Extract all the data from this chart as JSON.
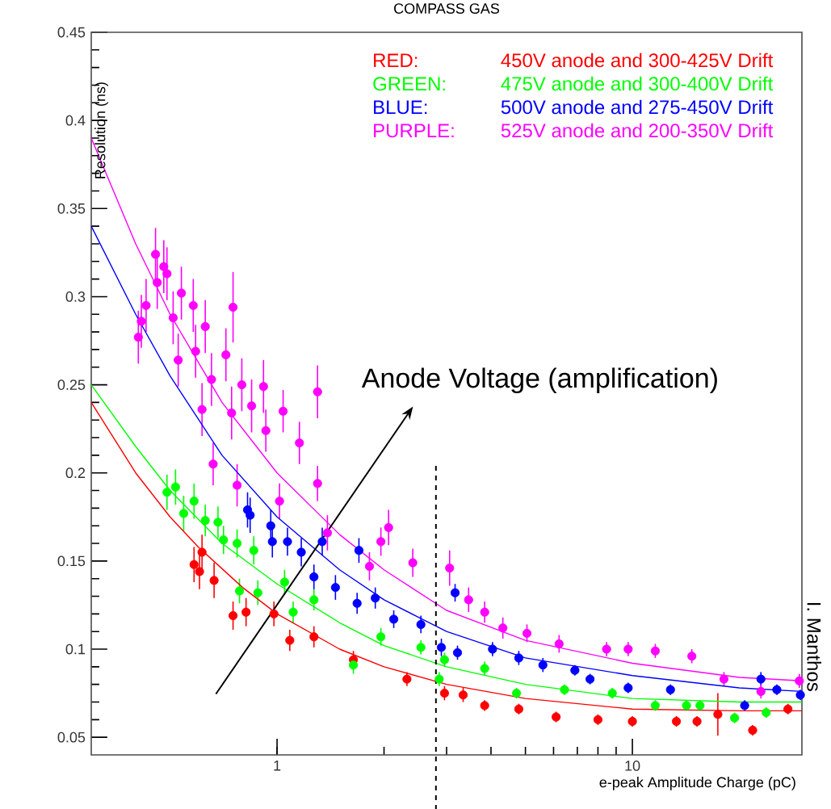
{
  "chart_data": {
    "type": "scatter",
    "title": "COMPASS GAS",
    "xlabel": "e-peak Amplitude Charge (pC)",
    "ylabel": "Resolution (ns)",
    "log": "x",
    "xlim": [
      0.3,
      30
    ],
    "ylim": [
      0.04,
      0.45
    ],
    "xticks": [
      1,
      10
    ],
    "yticks": [
      0.05,
      0.1,
      0.15,
      0.2,
      0.25,
      0.3,
      0.35,
      0.4,
      0.45
    ],
    "legend": "top right",
    "grid": false,
    "ref_lines": [
      {
        "axis": "x",
        "value": 2.8,
        "color": "#000000",
        "line_style": "dashed"
      }
    ],
    "annotations": [
      "RED:",
      "GREEN:",
      "BLUE:",
      "PURPLE:",
      "Anode Voltage (amplification)",
      "I. Manthos"
    ],
    "series": [
      {
        "name": "450V anode and 300-425V Drift",
        "marker": "circle",
        "color": "#ff0000",
        "x": [
          0.584,
          0.615,
          0.605,
          0.665,
          0.752,
          0.818,
          0.98,
          1.086,
          1.27,
          1.64,
          2.32,
          2.9,
          2.96,
          3.34,
          3.84,
          4.79,
          6.1,
          8.0,
          10.0,
          13.3,
          15.2,
          17.4,
          21.8,
          27.4
        ],
        "values": [
          0.148,
          0.155,
          0.144,
          0.139,
          0.119,
          0.121,
          0.12,
          0.105,
          0.107,
          0.094,
          0.083,
          null,
          0.075,
          0.074,
          0.068,
          0.066,
          0.0615,
          0.06,
          0.059,
          0.059,
          0.059,
          0.063,
          0.054,
          0.066
        ],
        "errors": [
          0.01,
          0.01,
          0.01,
          0.01,
          0.008,
          0.008,
          0.007,
          0.006,
          0.006,
          0.005,
          0.004,
          null,
          0.004,
          0.004,
          0.003,
          0.003,
          0.003,
          0.003,
          0.003,
          0.003,
          0.003,
          0.012,
          0.003,
          0.003
        ]
      },
      {
        "name": "475V anode and 300-400V Drift",
        "marker": "circle",
        "color": "#00ff00",
        "x": [
          0.49,
          0.518,
          0.584,
          0.546,
          0.628,
          0.682,
          0.707,
          0.772,
          0.86,
          0.784,
          0.883,
          1.05,
          1.11,
          1.27,
          1.64,
          1.96,
          2.54,
          2.86,
          2.96,
          3.84,
          4.72,
          6.44,
          8.78,
          11.6,
          14.2,
          15.5,
          19.4,
          23.8
        ],
        "values": [
          0.189,
          0.192,
          0.184,
          0.177,
          0.173,
          0.172,
          0.162,
          0.16,
          0.156,
          0.133,
          0.132,
          0.138,
          0.121,
          0.128,
          0.091,
          0.107,
          0.101,
          0.083,
          0.094,
          0.089,
          0.075,
          0.077,
          0.075,
          0.068,
          0.068,
          0.068,
          0.061,
          0.064
        ],
        "errors": [
          0.01,
          0.01,
          0.01,
          0.01,
          0.009,
          0.009,
          0.008,
          0.008,
          0.008,
          0.007,
          0.007,
          0.007,
          0.006,
          0.006,
          0.005,
          0.005,
          0.004,
          0.004,
          0.004,
          0.004,
          0.003,
          0.003,
          0.003,
          0.003,
          0.003,
          0.003,
          0.003,
          0.003
        ]
      },
      {
        "name": "500V anode and 275-450V Drift",
        "marker": "circle",
        "color": "#0000ff",
        "x": [
          0.826,
          0.84,
          0.96,
          0.97,
          1.07,
          1.17,
          1.34,
          1.27,
          1.46,
          1.68,
          1.7,
          1.89,
          2.13,
          2.54,
          2.9,
          3.17,
          3.22,
          4.04,
          4.79,
          5.6,
          6.89,
          7.6,
          9.73,
          12.8,
          18.4,
          20.7,
          23.0,
          25.5,
          29.7
        ],
        "values": [
          0.179,
          0.176,
          0.17,
          0.161,
          0.161,
          0.155,
          0.161,
          0.141,
          0.135,
          0.126,
          0.156,
          0.129,
          0.117,
          0.114,
          0.101,
          0.132,
          0.098,
          0.1,
          0.095,
          0.091,
          0.088,
          0.083,
          0.078,
          0.077,
          null,
          0.068,
          0.083,
          0.077,
          0.074
        ],
        "errors": [
          0.01,
          0.01,
          0.009,
          0.009,
          0.008,
          0.008,
          0.008,
          0.007,
          0.007,
          0.006,
          0.007,
          0.006,
          0.005,
          0.005,
          0.005,
          0.005,
          0.004,
          0.004,
          0.004,
          0.004,
          0.003,
          0.003,
          0.003,
          0.003,
          null,
          0.003,
          0.004,
          0.003,
          0.003
        ]
      },
      {
        "name": "525V anode and 200-350V Drift",
        "marker": "circle",
        "color": "#ff00ff",
        "x": [
          0.455,
          0.48,
          0.49,
          0.46,
          0.428,
          0.407,
          0.415,
          0.51,
          0.538,
          0.581,
          0.752,
          0.628,
          0.59,
          0.527,
          0.718,
          0.654,
          0.796,
          0.916,
          0.615,
          0.745,
          0.848,
          1.04,
          1.3,
          0.93,
          1.156,
          0.661,
          0.772,
          1.3,
          1.016,
          1.386,
          2.06,
          1.96,
          2.41,
          1.82,
          3.06,
          3.46,
          3.84,
          4.32,
          5.05,
          6.22,
          8.46,
          9.73,
          11.6,
          14.7,
          18.1,
          23.0,
          29.5
        ],
        "values": [
          0.324,
          0.317,
          0.313,
          0.308,
          0.295,
          0.277,
          0.286,
          0.288,
          0.302,
          0.295,
          0.294,
          0.283,
          0.269,
          0.264,
          0.267,
          0.253,
          0.25,
          0.249,
          0.236,
          0.234,
          0.238,
          0.235,
          0.246,
          0.224,
          0.217,
          0.205,
          0.193,
          0.194,
          0.184,
          0.166,
          0.169,
          0.161,
          0.149,
          0.147,
          0.146,
          0.128,
          0.121,
          0.112,
          0.109,
          0.103,
          0.1,
          0.1,
          0.099,
          0.096,
          0.083,
          0.076,
          0.082
        ],
        "errors": [
          0.015,
          0.015,
          0.015,
          0.015,
          0.015,
          0.015,
          0.015,
          0.015,
          0.015,
          0.015,
          0.02,
          0.015,
          0.015,
          0.015,
          0.015,
          0.015,
          0.015,
          0.015,
          0.015,
          0.015,
          0.015,
          0.012,
          0.015,
          0.012,
          0.012,
          0.012,
          0.012,
          0.01,
          0.01,
          0.01,
          0.01,
          0.008,
          0.008,
          0.008,
          0.01,
          0.007,
          0.006,
          0.006,
          0.005,
          0.005,
          0.004,
          0.004,
          0.004,
          0.004,
          0.004,
          0.004,
          0.004
        ]
      },
      {
        "type": "line",
        "marker": "none",
        "color": "#ff0000",
        "x": [
          0.3,
          0.4,
          0.5,
          0.6,
          0.8,
          1,
          1.5,
          2,
          3,
          5,
          10,
          20,
          30
        ],
        "values": [
          0.24,
          0.2,
          0.175,
          0.158,
          0.135,
          0.12,
          0.1,
          0.09,
          0.08,
          0.072,
          0.066,
          0.065,
          0.065
        ]
      },
      {
        "type": "line",
        "marker": "none",
        "color": "#00ff00",
        "x": [
          0.3,
          0.4,
          0.5,
          0.7,
          1,
          1.5,
          2,
          3,
          5,
          10,
          20,
          30
        ],
        "values": [
          0.25,
          0.215,
          0.19,
          0.16,
          0.137,
          0.115,
          0.102,
          0.09,
          0.08,
          0.072,
          0.07,
          0.07
        ]
      },
      {
        "type": "line",
        "marker": "none",
        "color": "#0000ff",
        "x": [
          0.3,
          0.4,
          0.5,
          0.7,
          1,
          1.5,
          2,
          3,
          5,
          10,
          20,
          30
        ],
        "values": [
          0.34,
          0.29,
          0.255,
          0.21,
          0.175,
          0.145,
          0.128,
          0.11,
          0.095,
          0.085,
          0.078,
          0.076
        ]
      },
      {
        "type": "line",
        "marker": "none",
        "color": "#ff00ff",
        "x": [
          0.3,
          0.4,
          0.5,
          0.7,
          1,
          1.5,
          2,
          3,
          5,
          10,
          20,
          30
        ],
        "values": [
          0.39,
          0.33,
          0.29,
          0.24,
          0.2,
          0.165,
          0.145,
          0.122,
          0.105,
          0.092,
          0.084,
          0.082
        ]
      }
    ]
  }
}
